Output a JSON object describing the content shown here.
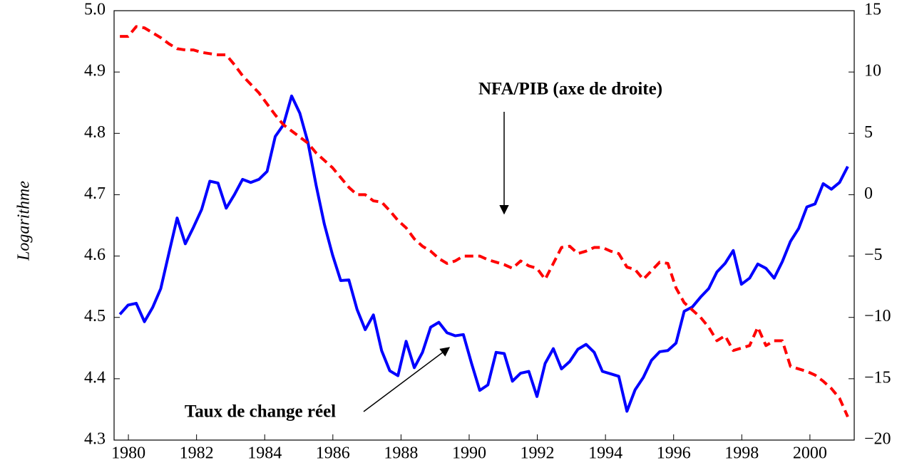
{
  "chart_data": {
    "type": "line",
    "y_label": "Logarithme",
    "annotations": [
      {
        "text": "NFA/PIB (axe de droite)"
      },
      {
        "text": "Taux de change réel"
      }
    ],
    "x": [
      1979.75,
      1979.99,
      1980.23,
      1980.47,
      1980.71,
      1980.95,
      1981.19,
      1981.43,
      1981.67,
      1981.91,
      1982.15,
      1982.39,
      1982.63,
      1982.87,
      1983.11,
      1983.35,
      1983.59,
      1983.83,
      1984.07,
      1984.31,
      1984.55,
      1984.79,
      1985.03,
      1985.27,
      1985.51,
      1985.75,
      1985.99,
      1986.23,
      1986.47,
      1986.71,
      1986.95,
      1987.19,
      1987.43,
      1987.67,
      1987.91,
      1988.15,
      1988.39,
      1988.63,
      1988.87,
      1989.11,
      1989.35,
      1989.59,
      1989.83,
      1990.07,
      1990.31,
      1990.55,
      1990.79,
      1991.03,
      1991.27,
      1991.51,
      1991.75,
      1991.99,
      1992.23,
      1992.47,
      1992.71,
      1992.95,
      1993.19,
      1993.43,
      1993.67,
      1993.91,
      1994.15,
      1994.39,
      1994.63,
      1994.87,
      1995.11,
      1995.35,
      1995.59,
      1995.83,
      1996.07,
      1996.31,
      1996.55,
      1996.79,
      1997.03,
      1997.27,
      1997.51,
      1997.75,
      1997.99,
      1998.23,
      1998.47,
      1998.71,
      1998.95,
      1999.19,
      1999.43,
      1999.67,
      1999.91,
      2000.15,
      2000.39,
      2000.63,
      2000.87,
      2001.11
    ],
    "series": [
      {
        "name": "Taux de change réel",
        "color": "#0000ff",
        "dash": false,
        "values": [
          4.505,
          4.52,
          4.523,
          4.493,
          4.516,
          4.547,
          4.605,
          4.662,
          4.62,
          4.647,
          4.676,
          4.722,
          4.719,
          4.678,
          4.7,
          4.725,
          4.72,
          4.725,
          4.738,
          4.795,
          4.814,
          4.861,
          4.833,
          4.785,
          4.715,
          4.652,
          4.602,
          4.56,
          4.561,
          4.513,
          4.48,
          4.504,
          4.446,
          4.413,
          4.405,
          4.461,
          4.418,
          4.443,
          4.484,
          4.492,
          4.475,
          4.47,
          4.472,
          4.425,
          4.381,
          4.39,
          4.443,
          4.441,
          4.396,
          4.409,
          4.412,
          4.371,
          4.425,
          4.449,
          4.416,
          4.428,
          4.448,
          4.456,
          4.443,
          4.412,
          4.408,
          4.404,
          4.347,
          4.382,
          4.402,
          4.43,
          4.444,
          4.446,
          4.458,
          4.51,
          4.517,
          4.533,
          4.547,
          4.574,
          4.588,
          4.609,
          4.554,
          4.564,
          4.587,
          4.58,
          4.564,
          4.591,
          4.624,
          4.645,
          4.68,
          4.685,
          4.718,
          4.709,
          4.72,
          4.746
        ]
      },
      {
        "name": "NFA/PIB",
        "color": "#ff0000",
        "dash": true,
        "axis": "y2",
        "values": [
          12.9,
          12.9,
          13.7,
          13.6,
          13.2,
          12.8,
          12.3,
          11.9,
          11.8,
          11.8,
          11.6,
          11.5,
          11.4,
          11.4,
          10.6,
          9.7,
          9.0,
          8.3,
          7.4,
          6.5,
          5.7,
          5.2,
          4.7,
          4.2,
          3.4,
          2.8,
          2.2,
          1.4,
          0.6,
          0,
          0,
          -0.5,
          -0.6,
          -1.3,
          -2.1,
          -2.7,
          -3.6,
          -4.2,
          -4.6,
          -5.2,
          -5.6,
          -5.4,
          -5.0,
          -5.0,
          -5.0,
          -5.3,
          -5.5,
          -5.7,
          -6.0,
          -5.4,
          -5.8,
          -6.0,
          -6.9,
          -5.6,
          -4.3,
          -4.2,
          -4.8,
          -4.6,
          -4.3,
          -4.3,
          -4.6,
          -4.8,
          -5.9,
          -6.1,
          -6.9,
          -6.2,
          -5.5,
          -5.6,
          -7.6,
          -8.8,
          -9.4,
          -10.0,
          -10.8,
          -11.9,
          -11.5,
          -12.7,
          -12.5,
          -12.3,
          -10.8,
          -12.3,
          -11.9,
          -11.9,
          -14.0,
          -14.2,
          -14.4,
          -14.7,
          -15.2,
          -15.8,
          -16.6,
          -18.1
        ]
      }
    ],
    "xlim": [
      1979.58,
      2001.3
    ],
    "xticks": [
      1980,
      1982,
      1984,
      1986,
      1988,
      1990,
      1992,
      1994,
      1996,
      1998,
      2000
    ],
    "ylim": [
      4.3,
      5.0
    ],
    "yticks": [
      4.3,
      4.4,
      4.5,
      4.6,
      4.7,
      4.8,
      4.9,
      {
        "value": 5,
        "label": "5.0"
      }
    ],
    "y2lim": [
      -20,
      15
    ],
    "y2ticks": [
      {
        "value": -20,
        "label": "−20"
      },
      {
        "value": -15,
        "label": "−15"
      },
      {
        "value": -10,
        "label": "−10"
      },
      {
        "value": -5,
        "label": "−5"
      },
      0,
      5,
      10,
      15
    ],
    "grid": false
  }
}
